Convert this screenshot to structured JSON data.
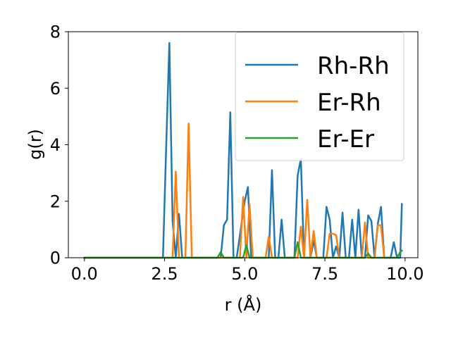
{
  "chart_data": {
    "type": "line",
    "title": "",
    "xlabel": "r (Å)",
    "ylabel": "g(r)",
    "xlim": [
      -0.5,
      10.4
    ],
    "ylim": [
      0,
      8
    ],
    "xticks": [
      0.0,
      2.5,
      5.0,
      7.5,
      10.0
    ],
    "xtick_labels": [
      "0.0",
      "2.5",
      "5.0",
      "7.5",
      "10.0"
    ],
    "yticks": [
      0,
      2,
      4,
      6,
      8
    ],
    "ytick_labels": [
      "0",
      "2",
      "4",
      "6",
      "8"
    ],
    "grid": false,
    "legend_position": "top-right",
    "series": [
      {
        "name": "Rh-Rh",
        "color": "#1f77b4",
        "x": [
          0.0,
          2.45,
          2.55,
          2.65,
          2.75,
          2.85,
          2.95,
          3.05,
          3.25,
          3.35,
          3.45,
          4.25,
          4.35,
          4.45,
          4.55,
          4.65,
          4.75,
          5.0,
          5.1,
          5.2,
          5.35,
          5.45,
          5.75,
          5.85,
          5.95,
          6.05,
          6.15,
          6.25,
          6.55,
          6.65,
          6.75,
          6.85,
          6.95,
          7.05,
          7.15,
          7.25,
          7.35,
          7.45,
          7.55,
          7.65,
          7.75,
          7.85,
          7.95,
          8.05,
          8.15,
          8.25,
          8.35,
          8.45,
          8.55,
          8.65,
          8.75,
          8.85,
          8.95,
          9.05,
          9.15,
          9.25,
          9.35,
          9.45,
          9.55,
          9.65,
          9.75,
          9.85,
          9.9
        ],
        "y": [
          0.0,
          0.0,
          3.9,
          7.6,
          1.3,
          0.0,
          1.55,
          0.0,
          0.0,
          0.0,
          0.0,
          0.0,
          1.15,
          1.35,
          5.15,
          0.0,
          0.0,
          2.0,
          2.5,
          0.0,
          0.0,
          0.0,
          0.0,
          3.1,
          0.0,
          0.0,
          1.35,
          0.0,
          0.0,
          2.9,
          3.5,
          0.0,
          0.0,
          0.0,
          0.6,
          0.0,
          0.0,
          0.0,
          1.8,
          1.35,
          0.0,
          0.4,
          0.0,
          1.6,
          0.0,
          0.0,
          1.35,
          0.0,
          1.7,
          0.0,
          0.0,
          1.5,
          1.3,
          0.0,
          1.2,
          1.8,
          0.0,
          0.0,
          0.0,
          0.55,
          0.0,
          0.0,
          1.9
        ]
      },
      {
        "name": "Er-Rh",
        "color": "#ff7f0e",
        "x": [
          0.0,
          2.75,
          2.85,
          2.95,
          3.05,
          3.15,
          3.25,
          3.35,
          3.45,
          4.75,
          4.85,
          4.95,
          5.05,
          5.15,
          5.25,
          5.65,
          5.75,
          5.85,
          5.95,
          6.65,
          6.75,
          6.85,
          6.95,
          7.05,
          7.15,
          7.25,
          7.35,
          7.45,
          7.55,
          7.65,
          7.75,
          7.85,
          7.95,
          8.05,
          8.15,
          8.55,
          8.65,
          8.75,
          8.85,
          8.95,
          9.05,
          9.15,
          9.25,
          9.35,
          9.45,
          9.55,
          9.65
        ],
        "y": [
          0.0,
          0.0,
          3.05,
          0.0,
          0.0,
          0.0,
          4.75,
          0.0,
          0.0,
          0.0,
          0.0,
          2.15,
          0.0,
          1.9,
          0.0,
          0.0,
          0.75,
          0.0,
          0.0,
          0.0,
          1.1,
          0.0,
          2.05,
          0.0,
          0.95,
          0.0,
          0.0,
          0.0,
          0.0,
          0.85,
          0.85,
          0.8,
          0.0,
          0.0,
          0.0,
          0.0,
          0.0,
          1.25,
          0.0,
          0.0,
          0.0,
          1.15,
          1.15,
          0.0,
          0.0,
          0.0,
          0.0
        ]
      },
      {
        "name": "Er-Er",
        "color": "#2ca02c",
        "x": [
          0.0,
          4.15,
          4.25,
          4.35,
          4.95,
          5.05,
          5.15,
          6.55,
          6.65,
          6.75,
          8.75,
          8.85,
          8.95,
          9.75,
          9.85,
          9.9
        ],
        "y": [
          0.0,
          0.0,
          0.2,
          0.0,
          0.0,
          0.45,
          0.0,
          0.0,
          0.55,
          0.0,
          0.0,
          0.15,
          0.0,
          0.0,
          0.2,
          0.25
        ]
      }
    ]
  }
}
